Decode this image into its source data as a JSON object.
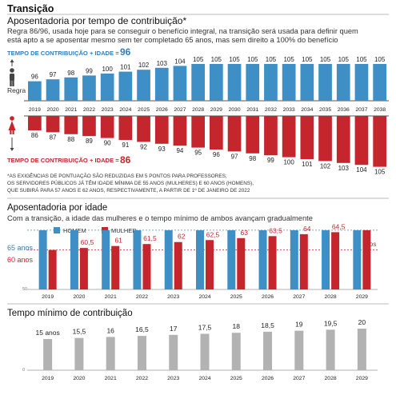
{
  "header": {
    "section": "Transição",
    "title": "Aposentadoria por tempo de contribuição*",
    "description_line1": "Regra 86/96, usada hoje para se conseguir o benefício integral, na transição será usada para definir quem",
    "description_line2": "está apto a se aposentar mesmo sem ter completado 65 anos, mas sem direito a 100% do benefício"
  },
  "chart1": {
    "male_label_prefix": "TEMPO DE CONTRIBUIÇÃO + IDADE =",
    "male_label_value": "96",
    "male_side_label": "Regra",
    "female_label_prefix": "TEMPO DE CONTRIBUIÇÃO + IDADE =",
    "female_label_value": "86",
    "note_line1": "*AS EXIGÊNCIAS DE PONTUAÇÃO SÃO REDUZIDAS EM 5 PONTOS PARA PROFESSORES;",
    "note_line2": "OS SERVIDORES PÚBLICOS JÁ TÊM IDADE MÍNIMA DE 55 ANOS (MULHERES) E 60 ANOS (HOMENS),",
    "note_line3": "QUE SUBIRÁ PARA 57 ANOS E 62 ANOS, RESPECTIVAMENTE, A PARTIR DE 1º DE JANEIRO DE 2022"
  },
  "chart2": {
    "title": "Aposentadoria por idade",
    "subtitle": "Com a transição, a idade das mulheres e o tempo mínimo de ambos avançam gradualmente",
    "legend_men": "HOMEM",
    "legend_women": "MULHER",
    "men_label": "65 anos",
    "women_label": "60 anos",
    "axis_min_label": "50",
    "last_women_label": "65",
    "last_women_unit": "anos"
  },
  "chart3": {
    "title": "Tempo mínimo de contribuição",
    "first_unit": "anos",
    "axis_min_label": "0"
  },
  "colors": {
    "blue": "#3d8fc6",
    "red": "#c5262d",
    "gray": "#b2b2b2",
    "accent_text": "#2e7fbf"
  },
  "chart_data": [
    {
      "type": "bar",
      "categories": [
        "2019",
        "2020",
        "2021",
        "2022",
        "2023",
        "2024",
        "2025",
        "2026",
        "2027",
        "2028",
        "2029",
        "2030",
        "2031",
        "2032",
        "2033",
        "2034",
        "2035",
        "2036",
        "2037",
        "2038"
      ],
      "series": [
        {
          "name": "HOMEM",
          "values": [
            96,
            97,
            98,
            99,
            100,
            101,
            102,
            103,
            104,
            105,
            105,
            105,
            105,
            105,
            105,
            105,
            105,
            105,
            105,
            105
          ]
        },
        {
          "name": "MULHER",
          "values": [
            86,
            87,
            88,
            89,
            90,
            91,
            92,
            93,
            94,
            95,
            96,
            97,
            98,
            99,
            100,
            101,
            102,
            103,
            104,
            105
          ]
        }
      ]
    },
    {
      "type": "bar",
      "categories": [
        "2019",
        "2020",
        "2021",
        "2022",
        "2023",
        "2024",
        "2025",
        "2026",
        "2027",
        "2028",
        "2029"
      ],
      "series": [
        {
          "name": "HOMEM",
          "values": [
            65,
            65,
            65,
            65,
            65,
            65,
            65,
            65,
            65,
            65,
            65
          ]
        },
        {
          "name": "MULHER",
          "values": [
            60,
            60.5,
            61,
            61.5,
            62,
            62.5,
            63,
            63.5,
            64,
            64.5,
            65
          ]
        }
      ],
      "ylim": [
        50,
        66
      ]
    },
    {
      "type": "bar",
      "categories": [
        "2019",
        "2020",
        "2021",
        "2022",
        "2023",
        "2024",
        "2025",
        "2026",
        "2027",
        "2028",
        "2029"
      ],
      "values": [
        15,
        15.5,
        16,
        16.5,
        17,
        17.5,
        18,
        18.5,
        19,
        19.5,
        20
      ],
      "ylim": [
        0,
        20
      ]
    }
  ]
}
